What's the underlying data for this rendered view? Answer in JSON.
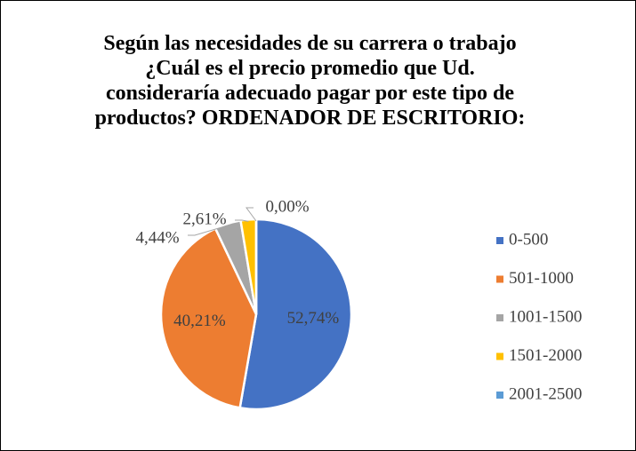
{
  "chart_data": {
    "type": "pie",
    "title": "Según las necesidades de su carrera o trabajo ¿Cuál es el precio promedio que Ud. consideraría adecuado pagar por este tipo de productos? ORDENADOR DE ESCRITORIO:",
    "categories": [
      "0-500",
      "501-1000",
      "1001-1500",
      "1501-2000",
      "2001-2500"
    ],
    "values": [
      52.74,
      40.21,
      4.44,
      2.61,
      0.0
    ],
    "value_labels": [
      "52,74%",
      "40,21%",
      "4,44%",
      "2,61%",
      "0,00%"
    ],
    "colors": [
      "#4472c4",
      "#ed7d31",
      "#a5a5a5",
      "#ffc000",
      "#5b9bd5"
    ],
    "legend": "right"
  }
}
